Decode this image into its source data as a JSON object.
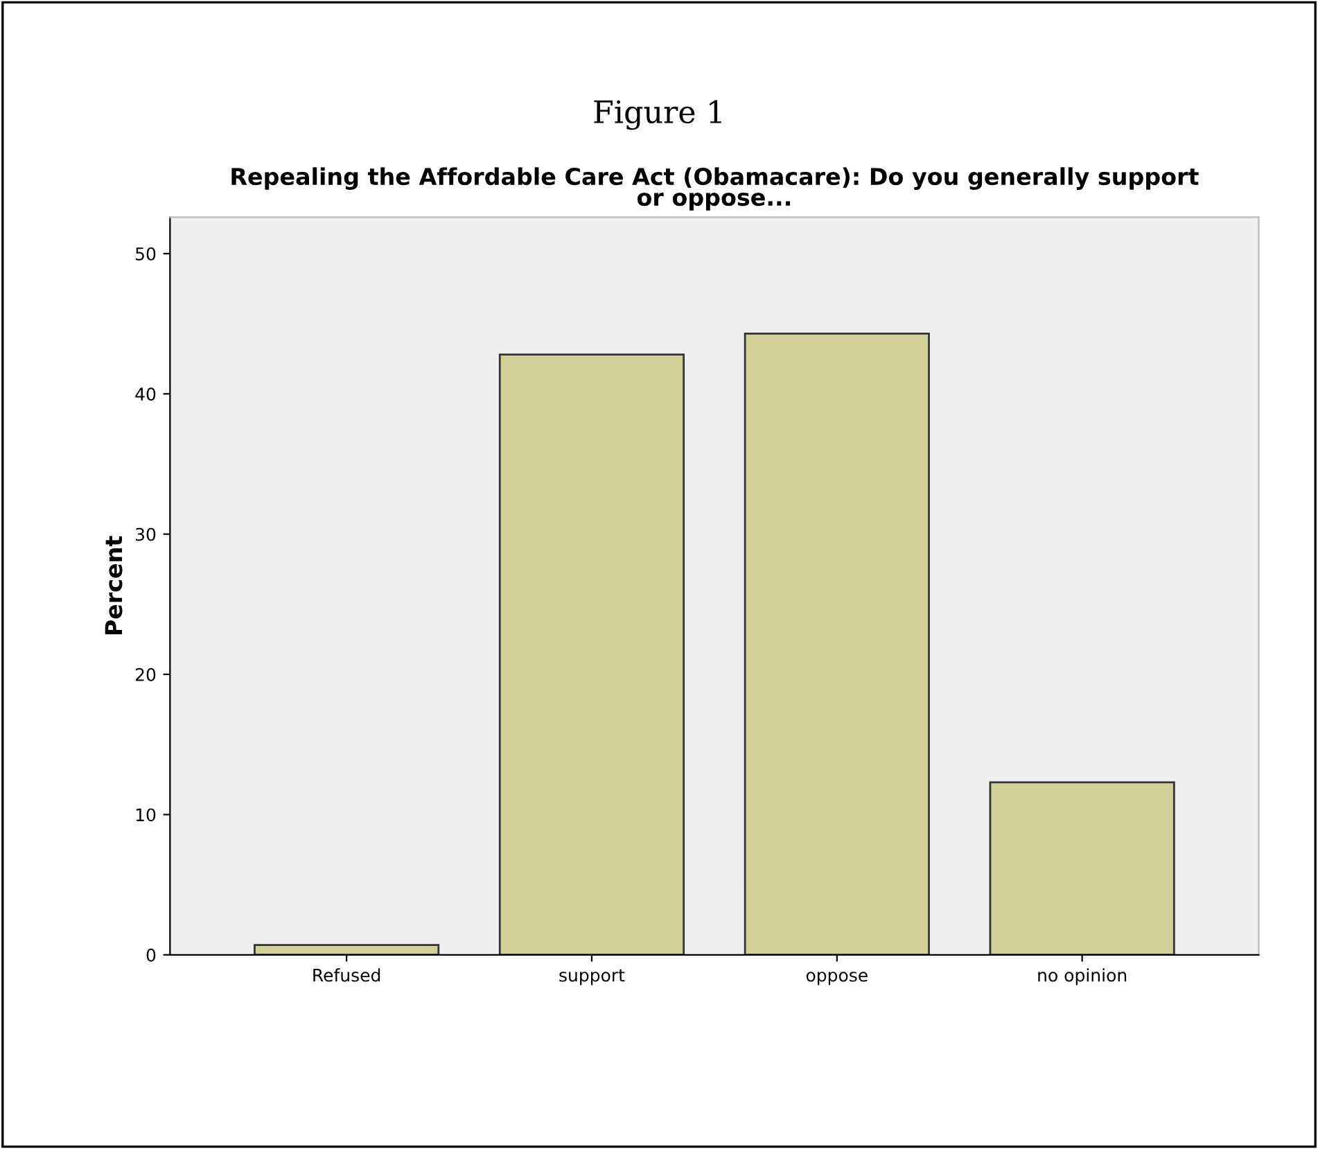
{
  "chart_data": {
    "type": "bar",
    "title": "Figure 1",
    "subtitle": "Repealing the Affordable Care Act (Obamacare): Do you generally support\nor oppose...",
    "ylabel": "Percent",
    "categories": [
      "Refused",
      "support",
      "oppose",
      "no opinion"
    ],
    "values": [
      0.7,
      42.8,
      44.3,
      12.3
    ],
    "color": "#d3cf98",
    "ylim": [
      0,
      52.6
    ],
    "yticks": [
      0,
      10,
      20,
      30,
      40,
      50
    ],
    "grid": false
  }
}
